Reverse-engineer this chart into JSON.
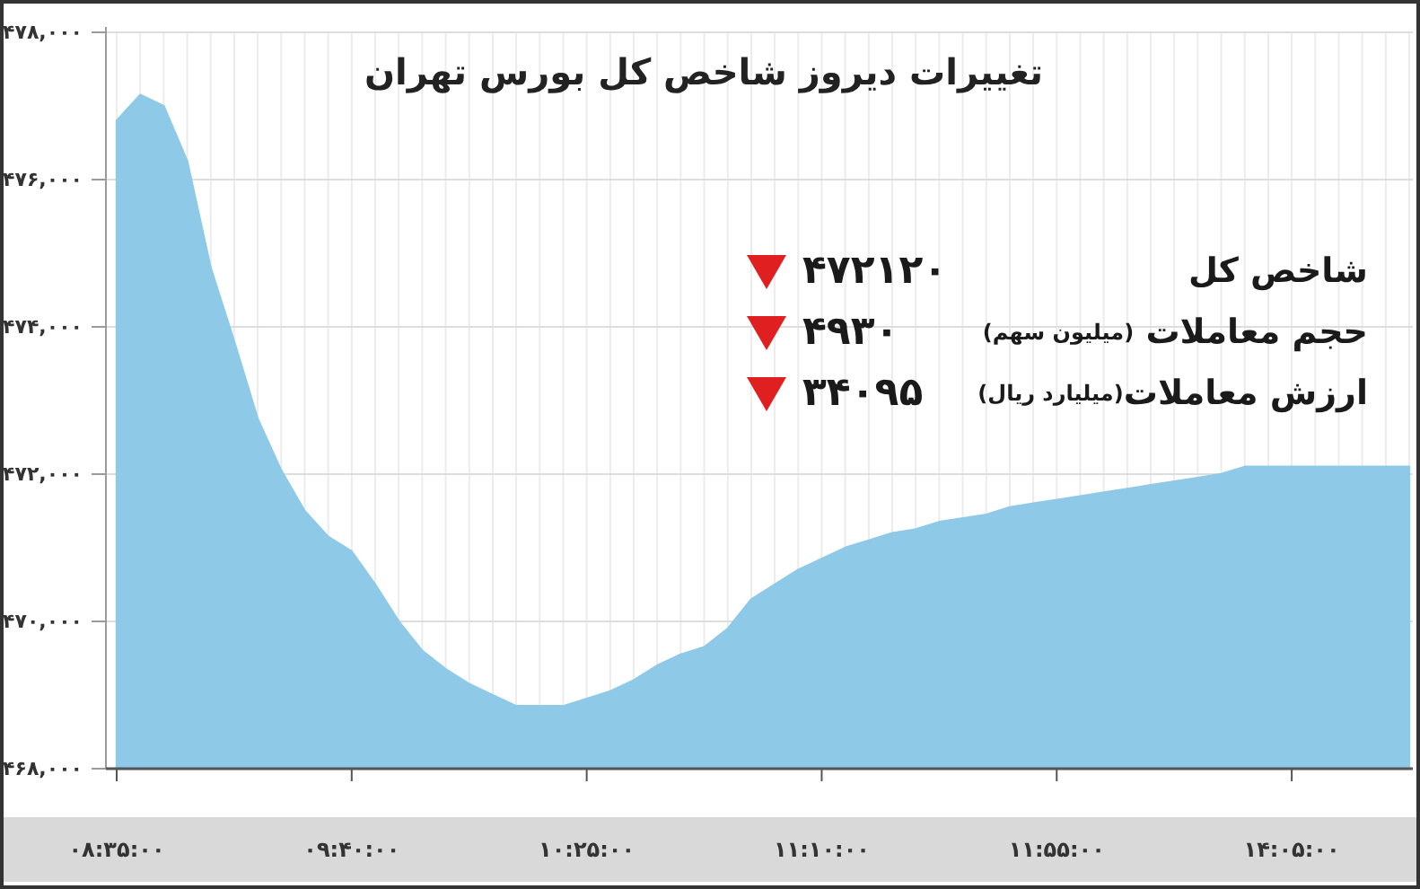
{
  "chart_data": {
    "type": "area",
    "title": "تغییرات دیروز شاخص کل بورس تهران",
    "categories": [
      "۰۸:۳۵:۰۰",
      null,
      null,
      null,
      null,
      null,
      null,
      null,
      null,
      null,
      "۰۹:۴۰:۰۰",
      null,
      null,
      null,
      null,
      null,
      null,
      null,
      null,
      null,
      "۱۰:۲۵:۰۰",
      null,
      null,
      null,
      null,
      null,
      null,
      null,
      null,
      null,
      "۱۱:۱۰:۰۰",
      null,
      null,
      null,
      null,
      null,
      null,
      null,
      null,
      null,
      "۱۱:۵۵:۰۰",
      null,
      null,
      null,
      null,
      null,
      null,
      null,
      null,
      null,
      "۱۴:۰۵:۰۰",
      null,
      null,
      null,
      null,
      null
    ],
    "series": [
      {
        "color": "#8ecae8",
        "values": [
          476800,
          477150,
          477000,
          476250,
          474800,
          473800,
          472750,
          472050,
          471500,
          471150,
          470950,
          470500,
          470000,
          469600,
          469350,
          469150,
          469000,
          468850,
          468850,
          468850,
          468950,
          469050,
          469200,
          469400,
          469550,
          469650,
          469900,
          470300,
          470500,
          470700,
          470850,
          471000,
          471100,
          471200,
          471250,
          471350,
          471400,
          471450,
          471550,
          471600,
          471650,
          471700,
          471750,
          471800,
          471850,
          471900,
          471950,
          472000,
          472100,
          472100,
          472100,
          472100,
          472100,
          472100,
          472100,
          472100
        ]
      }
    ],
    "ylim": [
      468000,
      478000
    ],
    "yticks": [
      {
        "value": 468000,
        "label": "۴۶۸,۰۰۰"
      },
      {
        "value": 470000,
        "label": "۴۷۰,۰۰۰"
      },
      {
        "value": 472000,
        "label": "۴۷۲,۰۰۰"
      },
      {
        "value": 474000,
        "label": "۴۷۴,۰۰۰"
      },
      {
        "value": 476000,
        "label": "۴۷۶,۰۰۰"
      },
      {
        "value": 478000,
        "label": "۴۷۸,۰۰۰"
      }
    ],
    "grid": true,
    "annotations": [
      "شاخص کل",
      "۴۷۲۱۲۰",
      "حجم معاملات (میلیون سهم)",
      "۴۹۳۰",
      "ارزش معاملات(میلیارد ریال)",
      "۳۴۰۹۵"
    ]
  }
}
